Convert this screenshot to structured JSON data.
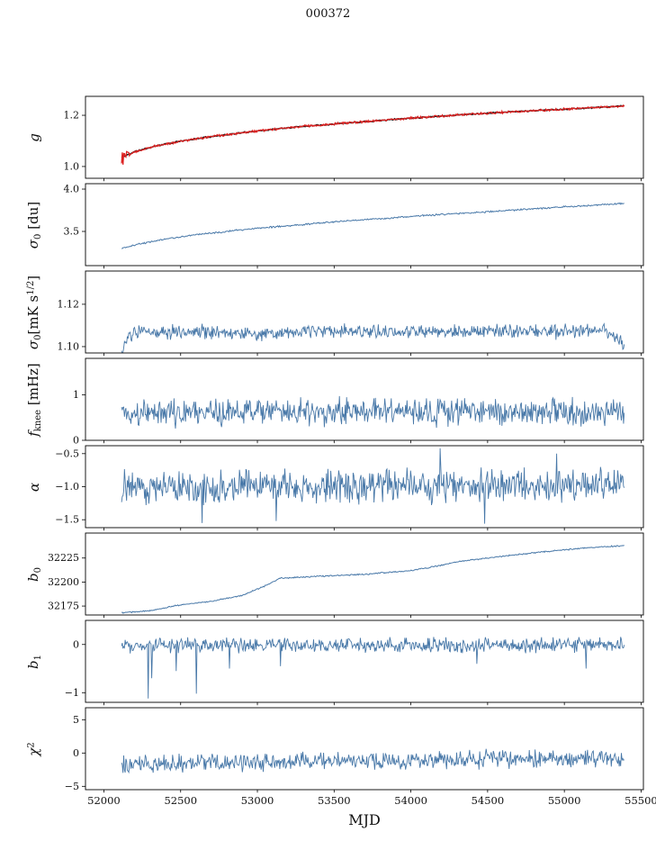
{
  "title": "000372",
  "colors": {
    "line": "#4878a8",
    "overlay_red": "#dd2222",
    "overlay_dark": "#1a1a1a",
    "axis": "#000000",
    "text": "#111111"
  },
  "chart_data": {
    "type": "line",
    "title": "000372",
    "xlabel": "MJD",
    "xlim": [
      51880,
      55515
    ],
    "x_data_range": [
      52115,
      55390
    ],
    "xticks": [
      {
        "v": 52000,
        "label": "52000"
      },
      {
        "v": 52500,
        "label": "52500"
      },
      {
        "v": 53000,
        "label": "53000"
      },
      {
        "v": 53500,
        "label": "53500"
      },
      {
        "v": 54000,
        "label": "54000"
      },
      {
        "v": 54500,
        "label": "54500"
      },
      {
        "v": 55000,
        "label": "55000"
      },
      {
        "v": 55500,
        "label": "55500"
      }
    ],
    "panels": [
      {
        "name": "g",
        "ylabel": [
          {
            "t": "g",
            "i": true
          }
        ],
        "ylim": [
          0.954,
          1.274
        ],
        "yticks": [
          {
            "v": 1.0,
            "label": "1.0"
          },
          {
            "v": 1.2,
            "label": "1.2"
          }
        ],
        "series": [
          {
            "color": "#1a1a1a",
            "width": 1.6,
            "n": 450,
            "seed": 11,
            "noise": 0.0015,
            "trend": [
              [
                52115,
                1.035
              ],
              [
                52200,
                1.058
              ],
              [
                52350,
                1.082
              ],
              [
                52500,
                1.099
              ],
              [
                52700,
                1.117
              ],
              [
                53000,
                1.139
              ],
              [
                53300,
                1.157
              ],
              [
                53600,
                1.171
              ],
              [
                54000,
                1.189
              ],
              [
                54400,
                1.205
              ],
              [
                54800,
                1.218
              ],
              [
                55100,
                1.227
              ],
              [
                55390,
                1.236
              ]
            ]
          },
          {
            "color": "#dd2222",
            "width": 1.3,
            "n": 700,
            "seed": 12,
            "noise": 0.0025,
            "burst": {
              "until": 52170,
              "noise": 0.018
            },
            "trend": [
              [
                52115,
                1.035
              ],
              [
                52200,
                1.058
              ],
              [
                52350,
                1.082
              ],
              [
                52500,
                1.099
              ],
              [
                52700,
                1.117
              ],
              [
                53000,
                1.139
              ],
              [
                53300,
                1.157
              ],
              [
                53600,
                1.171
              ],
              [
                54000,
                1.189
              ],
              [
                54400,
                1.205
              ],
              [
                54800,
                1.218
              ],
              [
                55100,
                1.227
              ],
              [
                55390,
                1.236
              ]
            ]
          }
        ]
      },
      {
        "name": "sigma0-du",
        "ylabel": [
          {
            "t": "σ",
            "i": true
          },
          {
            "t": "0",
            "sub": true
          },
          {
            "t": " [du]"
          }
        ],
        "ylim": [
          3.096,
          4.064
        ],
        "yticks": [
          {
            "v": 3.5,
            "label": "3.5"
          },
          {
            "v": 4.0,
            "label": "4.0"
          }
        ],
        "series": [
          {
            "color": "#4878a8",
            "width": 1.0,
            "n": 600,
            "seed": 21,
            "noise": 0.006,
            "trend": [
              [
                52115,
                3.3
              ],
              [
                52250,
                3.36
              ],
              [
                52400,
                3.41
              ],
              [
                52600,
                3.46
              ],
              [
                52800,
                3.5
              ],
              [
                53000,
                3.54
              ],
              [
                53200,
                3.565
              ],
              [
                53500,
                3.615
              ],
              [
                53800,
                3.65
              ],
              [
                54100,
                3.69
              ],
              [
                54400,
                3.72
              ],
              [
                54700,
                3.755
              ],
              [
                55000,
                3.79
              ],
              [
                55200,
                3.81
              ],
              [
                55390,
                3.83
              ]
            ]
          }
        ]
      },
      {
        "name": "sigma0-mk",
        "ylabel": [
          {
            "t": "σ",
            "i": true
          },
          {
            "t": "0",
            "sub": true
          },
          {
            "t": "[mK s"
          },
          {
            "t": "1/2",
            "sup": true
          },
          {
            "t": "]"
          }
        ],
        "ylim": [
          1.097,
          1.1357
        ],
        "yticks": [
          {
            "v": 1.1,
            "label": "1.10"
          },
          {
            "v": 1.12,
            "label": "1.12"
          }
        ],
        "series": [
          {
            "color": "#4878a8",
            "width": 0.9,
            "n": 700,
            "seed": 31,
            "noise": 0.002,
            "trend": [
              [
                52115,
                1.096
              ],
              [
                52140,
                1.102
              ],
              [
                52200,
                1.1065
              ],
              [
                52600,
                1.1075
              ],
              [
                53000,
                1.106
              ],
              [
                53400,
                1.1075
              ],
              [
                53800,
                1.1065
              ],
              [
                54200,
                1.107
              ],
              [
                54600,
                1.1075
              ],
              [
                55000,
                1.107
              ],
              [
                55250,
                1.108
              ],
              [
                55330,
                1.104
              ],
              [
                55390,
                1.101
              ]
            ]
          }
        ]
      },
      {
        "name": "fknee",
        "ylabel": [
          {
            "t": "f",
            "i": true
          },
          {
            "t": "knee",
            "sub": true
          },
          {
            "t": " [mHz]"
          }
        ],
        "ylim": [
          0,
          1.8
        ],
        "yticks": [
          {
            "v": 0,
            "label": "0"
          },
          {
            "v": 1,
            "label": "1"
          }
        ],
        "series": [
          {
            "color": "#4878a8",
            "width": 0.9,
            "n": 700,
            "seed": 41,
            "noise": 0.18,
            "trend": [
              [
                52115,
                0.6
              ],
              [
                53000,
                0.62
              ],
              [
                54000,
                0.63
              ],
              [
                55390,
                0.62
              ]
            ]
          }
        ]
      },
      {
        "name": "alpha",
        "ylabel": [
          {
            "t": "α",
            "i": true
          }
        ],
        "ylim": [
          -1.62,
          -0.38
        ],
        "yticks": [
          {
            "v": -1.5,
            "label": "−1.5"
          },
          {
            "v": -1.0,
            "label": "−1.0"
          },
          {
            "v": -0.5,
            "label": "−0.5"
          }
        ],
        "series": [
          {
            "color": "#4878a8",
            "width": 0.9,
            "n": 700,
            "seed": 51,
            "noise": 0.15,
            "trend": [
              [
                52115,
                -1.0
              ],
              [
                55390,
                -0.98
              ]
            ],
            "spikes": [
              {
                "x": 54190,
                "v": -0.42
              },
              {
                "x": 52640,
                "v": -1.55
              },
              {
                "x": 53120,
                "v": -1.52
              },
              {
                "x": 54480,
                "v": -1.56
              },
              {
                "x": 54950,
                "v": -0.5
              }
            ]
          }
        ]
      },
      {
        "name": "b0",
        "ylabel": [
          {
            "t": "b",
            "i": true
          },
          {
            "t": "0",
            "sub": true
          }
        ],
        "ylim": [
          32165.7,
          32251
        ],
        "yticks": [
          {
            "v": 32175,
            "label": "32175"
          },
          {
            "v": 32200,
            "label": "32200"
          },
          {
            "v": 32225,
            "label": "32225"
          }
        ],
        "series": [
          {
            "color": "#4878a8",
            "width": 1.0,
            "n": 600,
            "seed": 61,
            "noise": 0.4,
            "trend": [
              [
                52115,
                32168
              ],
              [
                52300,
                32170
              ],
              [
                52450,
                32175
              ],
              [
                52700,
                32180
              ],
              [
                52900,
                32186
              ],
              [
                53050,
                32196
              ],
              [
                53150,
                32204
              ],
              [
                53400,
                32206
              ],
              [
                53700,
                32208
              ],
              [
                54000,
                32212
              ],
              [
                54150,
                32216
              ],
              [
                54300,
                32221
              ],
              [
                54600,
                32227
              ],
              [
                54900,
                32232
              ],
              [
                55100,
                32235
              ],
              [
                55300,
                32237
              ],
              [
                55390,
                32238
              ]
            ]
          }
        ]
      },
      {
        "name": "b1",
        "ylabel": [
          {
            "t": "b",
            "i": true
          },
          {
            "t": "1",
            "sub": true
          }
        ],
        "ylim": [
          -1.2,
          0.5
        ],
        "yticks": [
          {
            "v": -1,
            "label": "−1"
          },
          {
            "v": 0,
            "label": "0"
          }
        ],
        "series": [
          {
            "color": "#4878a8",
            "width": 0.9,
            "n": 700,
            "seed": 71,
            "noise": 0.09,
            "trend": [
              [
                52115,
                -0.02
              ],
              [
                55390,
                0.0
              ]
            ],
            "spikes": [
              {
                "x": 52290,
                "v": -1.12
              },
              {
                "x": 52310,
                "v": -0.7
              },
              {
                "x": 52600,
                "v": -1.02
              },
              {
                "x": 52470,
                "v": -0.55
              },
              {
                "x": 52820,
                "v": -0.5
              },
              {
                "x": 53150,
                "v": -0.45
              },
              {
                "x": 54430,
                "v": -0.4
              },
              {
                "x": 55140,
                "v": -0.5
              }
            ]
          }
        ]
      },
      {
        "name": "chi2",
        "ylabel": [
          {
            "t": "χ",
            "i": true
          },
          {
            "t": "2",
            "sup": true
          }
        ],
        "ylim": [
          -5.5,
          6.8
        ],
        "yticks": [
          {
            "v": -5,
            "label": "−5"
          },
          {
            "v": 0,
            "label": "0"
          },
          {
            "v": 5,
            "label": "5"
          }
        ],
        "series": [
          {
            "color": "#4878a8",
            "width": 0.9,
            "n": 700,
            "seed": 81,
            "noise": 0.8,
            "trend": [
              [
                52115,
                -1.7
              ],
              [
                52600,
                -1.5
              ],
              [
                53400,
                -1.25
              ],
              [
                54200,
                -1.0
              ],
              [
                55390,
                -0.8
              ]
            ]
          }
        ]
      }
    ]
  }
}
